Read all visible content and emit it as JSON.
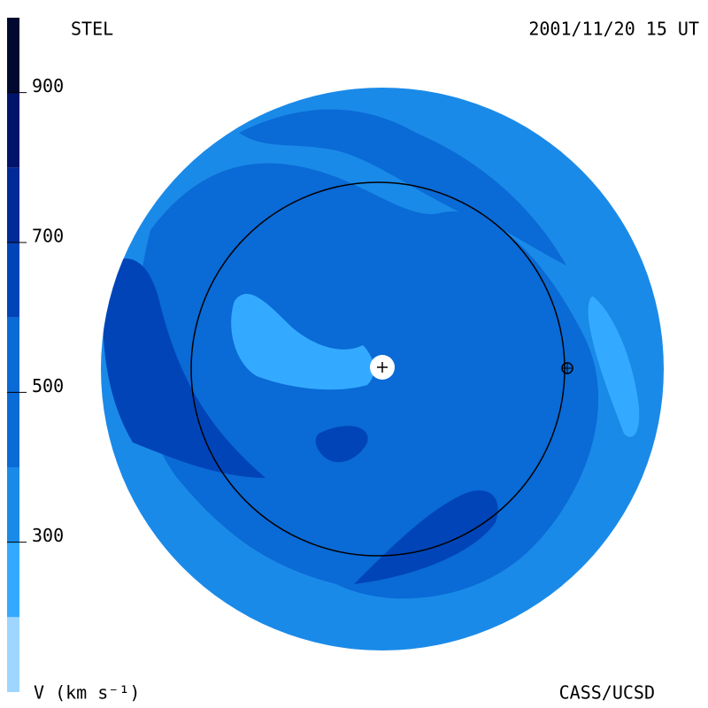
{
  "header": {
    "left": "STEL",
    "right": "2001/11/20 15 UT"
  },
  "footer": {
    "left": "V (km s⁻¹)",
    "right": "CASS/UCSD"
  },
  "colorbar": {
    "range": [
      100,
      1000
    ],
    "ticks": [
      300,
      500,
      700,
      900
    ],
    "bands": [
      {
        "from": 100,
        "to": 200,
        "color": "#9fd6ff"
      },
      {
        "from": 200,
        "to": 300,
        "color": "#33aaff"
      },
      {
        "from": 300,
        "to": 400,
        "color": "#1a8ae8"
      },
      {
        "from": 400,
        "to": 500,
        "color": "#0a6ad6"
      },
      {
        "from": 500,
        "to": 600,
        "color": "#0a6ad6"
      },
      {
        "from": 600,
        "to": 700,
        "color": "#0044b8"
      },
      {
        "from": 700,
        "to": 800,
        "color": "#002a96"
      },
      {
        "from": 800,
        "to": 900,
        "color": "#00146a"
      },
      {
        "from": 900,
        "to": 1000,
        "color": "#000a30"
      }
    ]
  }
}
